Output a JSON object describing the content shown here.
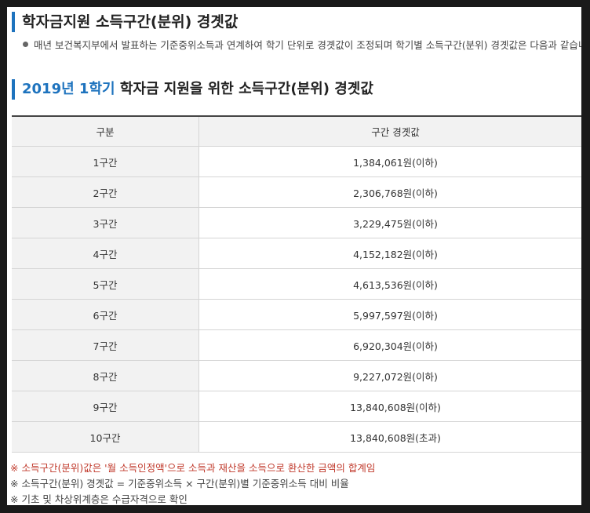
{
  "page": {
    "heading": "학자금지원 소득구간(분위) 경곗값",
    "intro": "매년 보건복지부에서 발표하는 기준중위소득과 연계하여 학기 단위로 경곗값이 조정되며 학기별 소득구간(분위) 경곗값은 다음과 같습니다.",
    "subheading_highlight": "2019년 1학기",
    "subheading_rest": " 학자금 지원을 위한 소득구간(분위) 경곗값"
  },
  "table": {
    "headers": [
      "구분",
      "구간 경곗값"
    ],
    "rows": [
      {
        "label": "1구간",
        "value": "1,384,061원(이하)"
      },
      {
        "label": "2구간",
        "value": "2,306,768원(이하)"
      },
      {
        "label": "3구간",
        "value": "3,229,475원(이하)"
      },
      {
        "label": "4구간",
        "value": "4,152,182원(이하)"
      },
      {
        "label": "5구간",
        "value": "4,613,536원(이하)"
      },
      {
        "label": "6구간",
        "value": "5,997,597원(이하)"
      },
      {
        "label": "7구간",
        "value": "6,920,304원(이하)"
      },
      {
        "label": "8구간",
        "value": "9,227,072원(이하)"
      },
      {
        "label": "9구간",
        "value": "13,840,608원(이하)"
      },
      {
        "label": "10구간",
        "value": "13,840,608원(초과)"
      }
    ]
  },
  "notes": [
    "※ 소득구간(분위)값은 '월 소득인정액'으로 소득과 재산을 소득으로 환산한 금액의 합계임",
    "※ 소득구간(분위) 경곗값 = 기준중위소득 × 구간(분위)별 기준중위소득 대비 비율",
    "※ 기초 및 차상위계층은 수급자격으로 확인"
  ],
  "colors": {
    "accent": "#1e73be",
    "note_red": "#c0392b",
    "header_bg": "#f2f2f2"
  }
}
